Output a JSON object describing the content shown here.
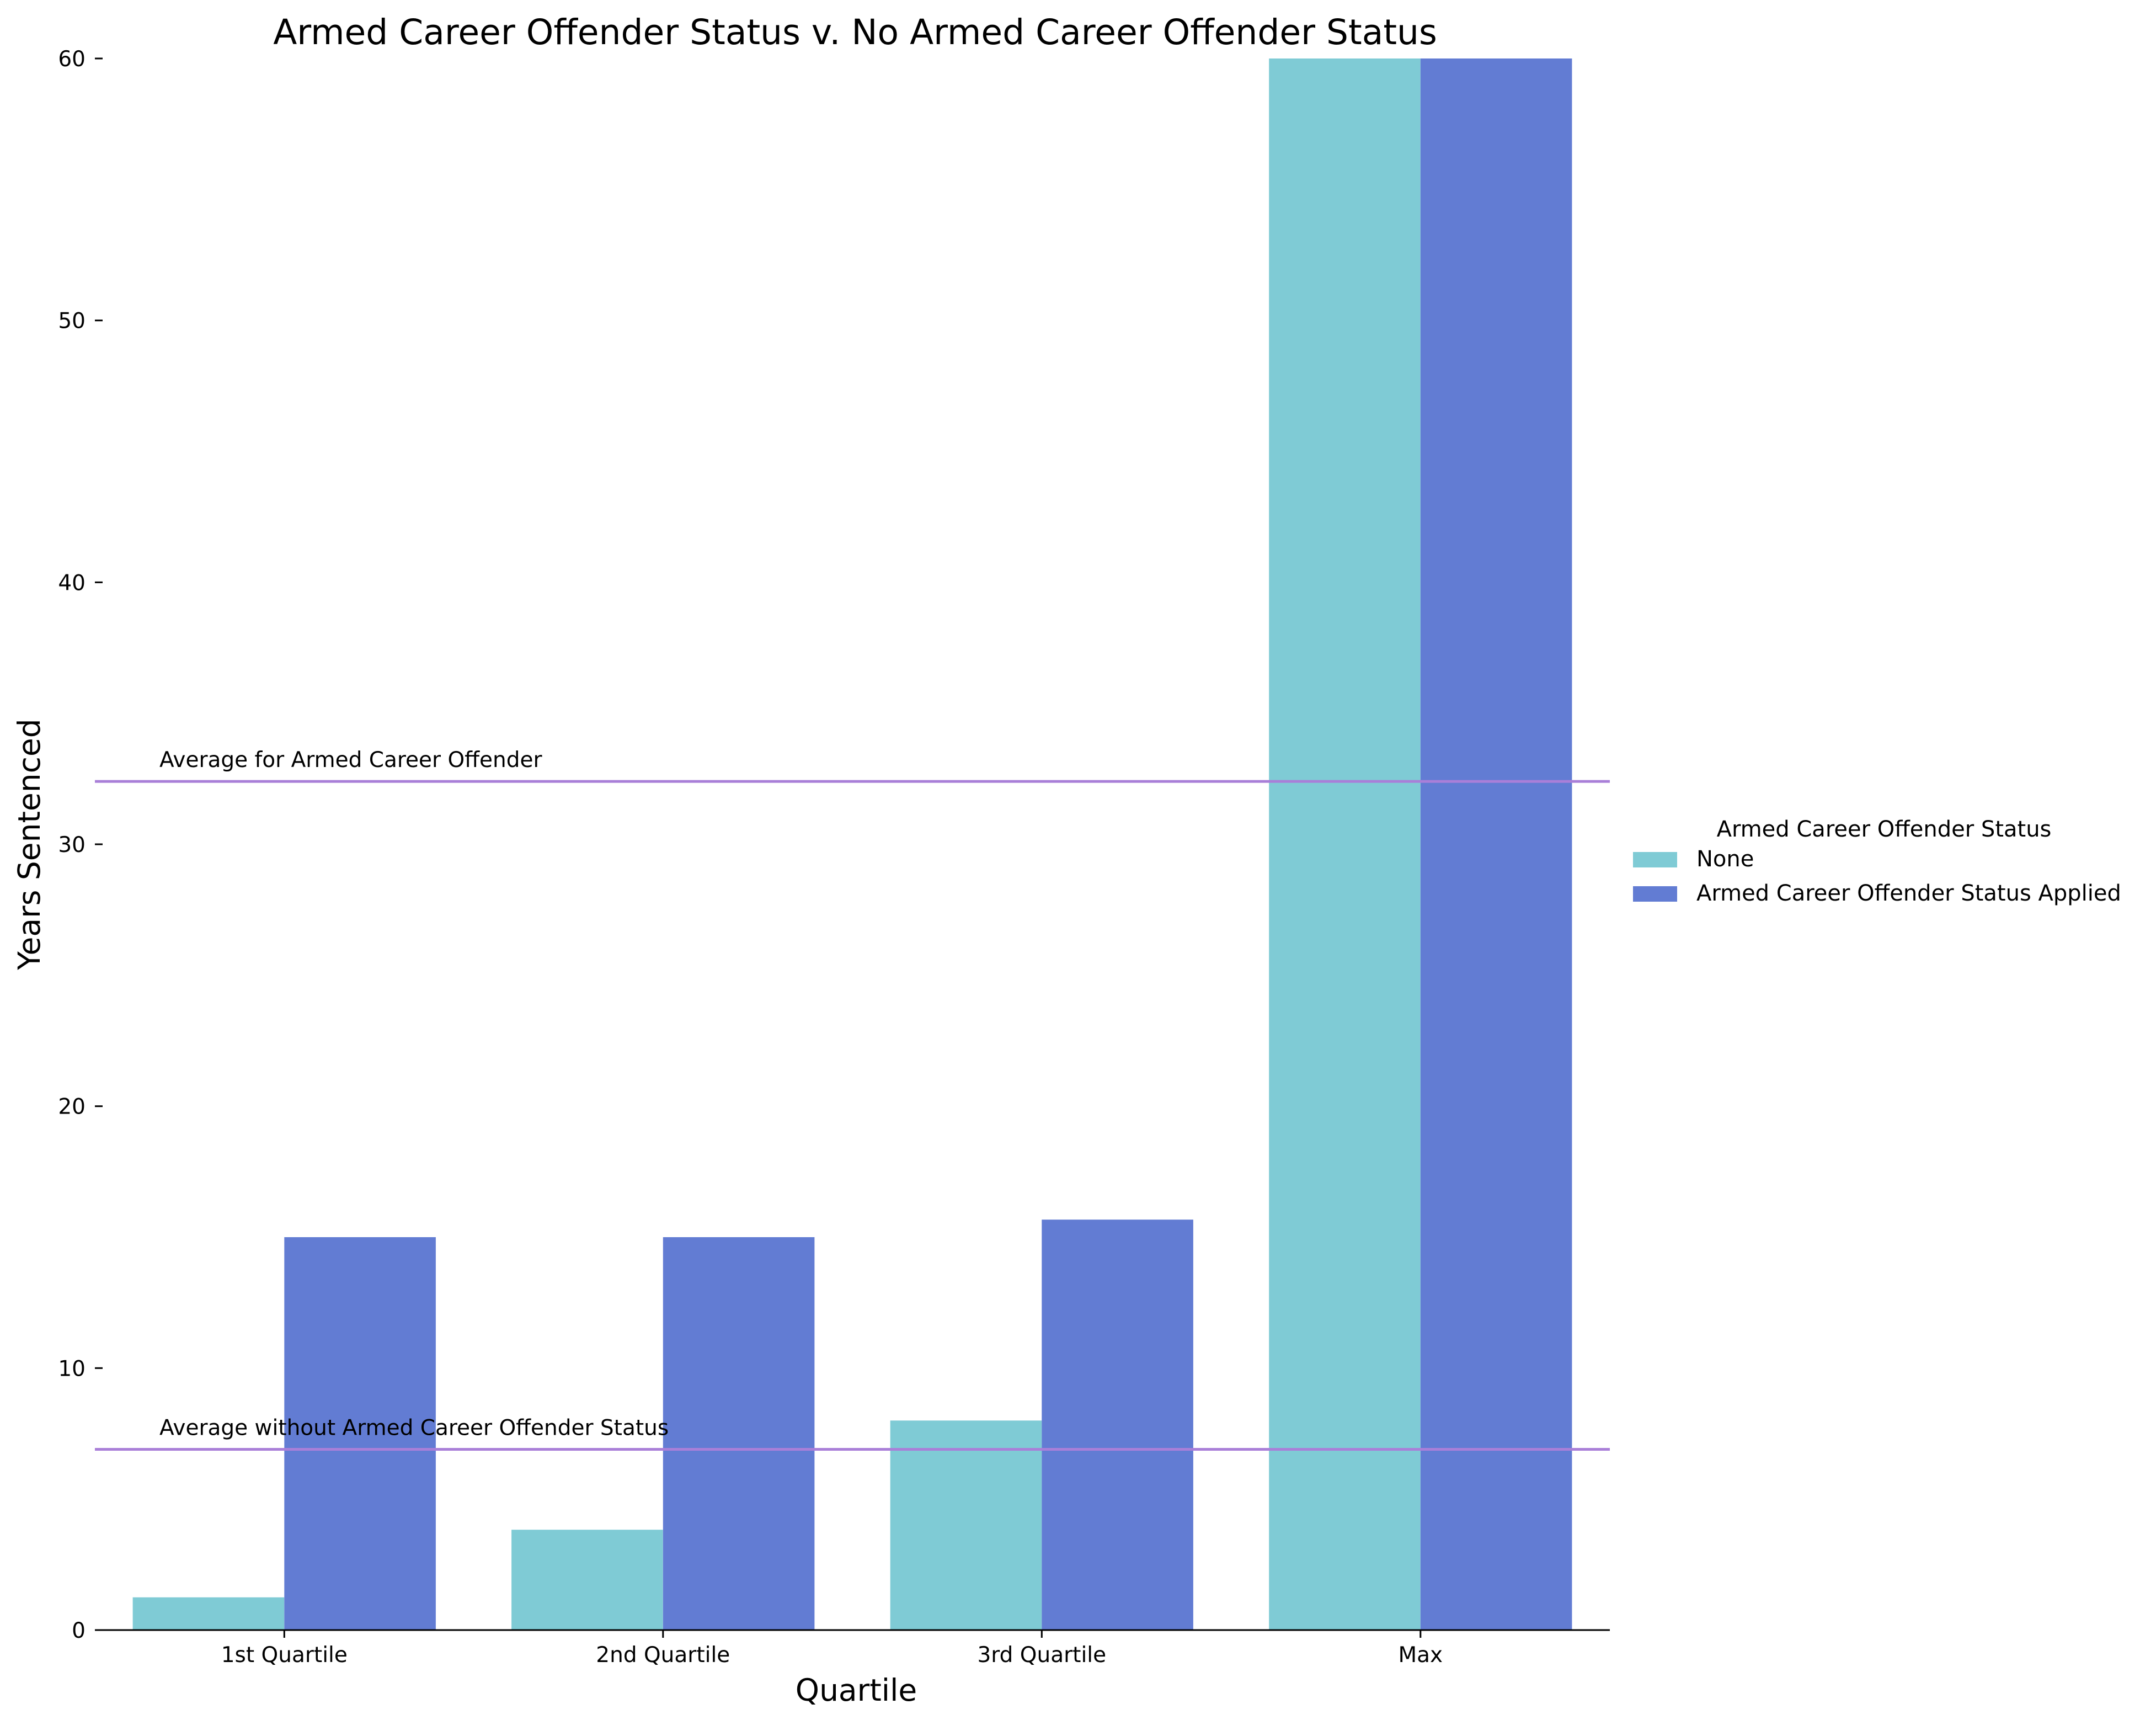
{
  "chart_data": {
    "type": "bar",
    "title": "Armed Career Offender Status v. No Armed Career Offender Status",
    "xlabel": "Quartile",
    "ylabel": "Years Sentenced",
    "categories": [
      "1st Quartile",
      "2nd Quartile",
      "3rd Quartile",
      "Max"
    ],
    "series": [
      {
        "name": "None",
        "color": "#7fcbd5",
        "values": [
          1.25,
          3.83,
          8.0,
          60.0
        ]
      },
      {
        "name": "Armed Career Offender Status Applied",
        "color": "#627cd3",
        "values": [
          15.0,
          15.0,
          15.67,
          60.0
        ]
      }
    ],
    "ylim": [
      0,
      60
    ],
    "yticks": [
      0,
      10,
      20,
      30,
      40,
      50,
      60
    ],
    "grid": false,
    "legend": {
      "title": "Armed Career Offender Status",
      "placement": "right"
    },
    "reference_lines": [
      {
        "label": "Average for Armed Career Offender",
        "value": 32.4,
        "color": "#a97fd8"
      },
      {
        "label": "Average without Armed Career Offender Status",
        "value": 6.9,
        "color": "#a97fd8"
      }
    ]
  }
}
